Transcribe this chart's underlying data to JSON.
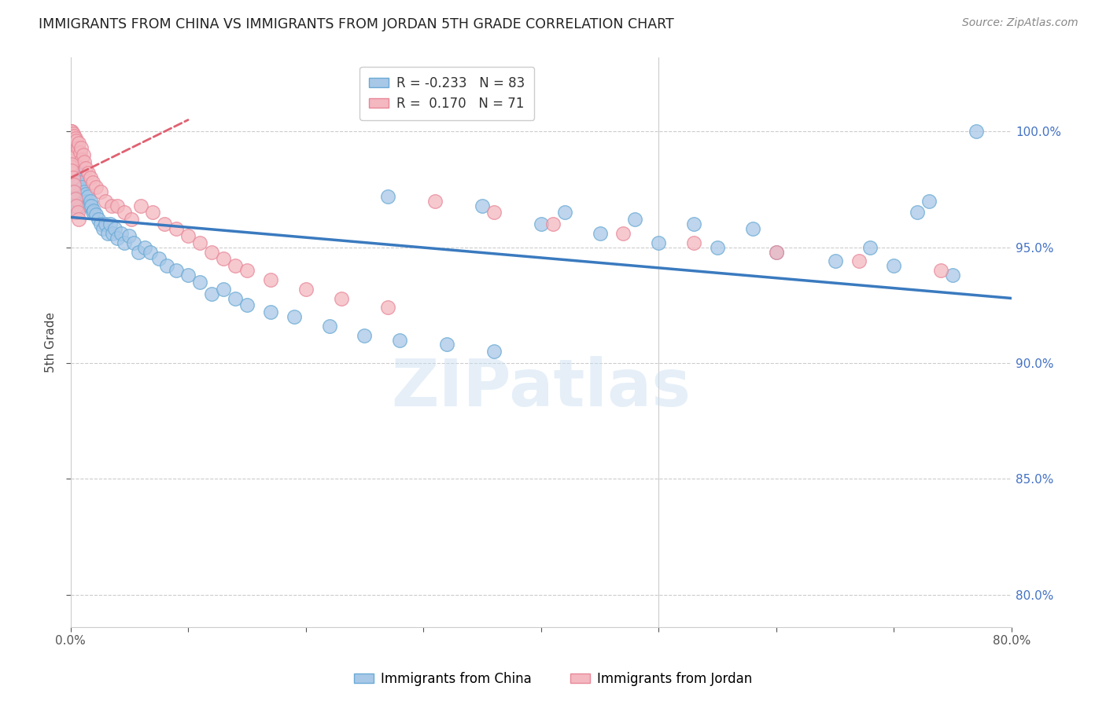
{
  "title": "IMMIGRANTS FROM CHINA VS IMMIGRANTS FROM JORDAN 5TH GRADE CORRELATION CHART",
  "source": "Source: ZipAtlas.com",
  "ylabel": "5th Grade",
  "ytick_labels": [
    "80.0%",
    "85.0%",
    "90.0%",
    "95.0%",
    "100.0%"
  ],
  "ytick_values": [
    0.8,
    0.85,
    0.9,
    0.95,
    1.0
  ],
  "xmin": 0.0,
  "xmax": 0.8,
  "ymin": 0.786,
  "ymax": 1.032,
  "legend_china_R": "-0.233",
  "legend_china_N": "83",
  "legend_jordan_R": "0.170",
  "legend_jordan_N": "71",
  "china_color": "#a8c8e8",
  "china_edge_color": "#6aaad4",
  "jordan_color": "#f4b8c0",
  "jordan_edge_color": "#e88898",
  "china_line_color": "#3a7abf",
  "jordan_line_color": "#e06070",
  "background_color": "#ffffff",
  "watermark": "ZIPatlas",
  "china_scatter_x": [
    0.001,
    0.001,
    0.001,
    0.002,
    0.002,
    0.003,
    0.003,
    0.003,
    0.004,
    0.004,
    0.004,
    0.005,
    0.005,
    0.006,
    0.006,
    0.007,
    0.007,
    0.008,
    0.008,
    0.009,
    0.01,
    0.01,
    0.011,
    0.012,
    0.013,
    0.014,
    0.015,
    0.016,
    0.017,
    0.018,
    0.019,
    0.02,
    0.022,
    0.024,
    0.026,
    0.028,
    0.03,
    0.032,
    0.034,
    0.036,
    0.038,
    0.04,
    0.043,
    0.046,
    0.05,
    0.054,
    0.058,
    0.063,
    0.068,
    0.075,
    0.082,
    0.09,
    0.1,
    0.11,
    0.12,
    0.13,
    0.14,
    0.15,
    0.17,
    0.19,
    0.22,
    0.25,
    0.28,
    0.32,
    0.36,
    0.4,
    0.45,
    0.5,
    0.55,
    0.6,
    0.65,
    0.7,
    0.75,
    0.73,
    0.72,
    0.27,
    0.35,
    0.42,
    0.48,
    0.53,
    0.58,
    0.68,
    0.77
  ],
  "china_scatter_y": [
    0.98,
    0.975,
    0.968,
    0.985,
    0.972,
    0.988,
    0.978,
    0.968,
    0.984,
    0.976,
    0.965,
    0.982,
    0.97,
    0.979,
    0.968,
    0.977,
    0.97,
    0.978,
    0.968,
    0.975,
    0.976,
    0.97,
    0.972,
    0.974,
    0.973,
    0.97,
    0.972,
    0.968,
    0.97,
    0.968,
    0.965,
    0.966,
    0.964,
    0.962,
    0.96,
    0.958,
    0.96,
    0.956,
    0.96,
    0.956,
    0.958,
    0.954,
    0.956,
    0.952,
    0.955,
    0.952,
    0.948,
    0.95,
    0.948,
    0.945,
    0.942,
    0.94,
    0.938,
    0.935,
    0.93,
    0.932,
    0.928,
    0.925,
    0.922,
    0.92,
    0.916,
    0.912,
    0.91,
    0.908,
    0.905,
    0.96,
    0.956,
    0.952,
    0.95,
    0.948,
    0.944,
    0.942,
    0.938,
    0.97,
    0.965,
    0.972,
    0.968,
    0.965,
    0.962,
    0.96,
    0.958,
    0.95,
    1.0
  ],
  "jordan_scatter_x": [
    0.0,
    0.0,
    0.0,
    0.0,
    0.0,
    0.0,
    0.0,
    0.001,
    0.001,
    0.001,
    0.001,
    0.002,
    0.002,
    0.002,
    0.003,
    0.003,
    0.004,
    0.004,
    0.005,
    0.005,
    0.006,
    0.007,
    0.008,
    0.009,
    0.01,
    0.011,
    0.012,
    0.013,
    0.015,
    0.017,
    0.019,
    0.022,
    0.026,
    0.03,
    0.035,
    0.04,
    0.046,
    0.052,
    0.06,
    0.07,
    0.08,
    0.09,
    0.1,
    0.11,
    0.12,
    0.13,
    0.14,
    0.15,
    0.17,
    0.2,
    0.23,
    0.27,
    0.31,
    0.36,
    0.41,
    0.47,
    0.53,
    0.6,
    0.67,
    0.74,
    0.0,
    0.0,
    0.001,
    0.001,
    0.002,
    0.003,
    0.003,
    0.004,
    0.005,
    0.006,
    0.007
  ],
  "jordan_scatter_y": [
    1.0,
    1.0,
    1.0,
    0.998,
    0.996,
    0.994,
    0.99,
    1.0,
    0.997,
    0.993,
    0.988,
    0.999,
    0.995,
    0.99,
    0.998,
    0.993,
    0.997,
    0.991,
    0.996,
    0.99,
    0.993,
    0.995,
    0.991,
    0.993,
    0.988,
    0.99,
    0.987,
    0.984,
    0.982,
    0.98,
    0.978,
    0.976,
    0.974,
    0.97,
    0.968,
    0.968,
    0.965,
    0.962,
    0.968,
    0.965,
    0.96,
    0.958,
    0.955,
    0.952,
    0.948,
    0.945,
    0.942,
    0.94,
    0.936,
    0.932,
    0.928,
    0.924,
    0.97,
    0.965,
    0.96,
    0.956,
    0.952,
    0.948,
    0.944,
    0.94,
    0.985,
    0.982,
    0.986,
    0.983,
    0.98,
    0.977,
    0.974,
    0.971,
    0.968,
    0.965,
    0.962
  ],
  "china_line_x0": 0.0,
  "china_line_x1": 0.8,
  "china_line_y0": 0.963,
  "china_line_y1": 0.928,
  "jordan_line_x0": 0.0,
  "jordan_line_x1": 0.1,
  "jordan_line_y0": 0.98,
  "jordan_line_y1": 1.005
}
